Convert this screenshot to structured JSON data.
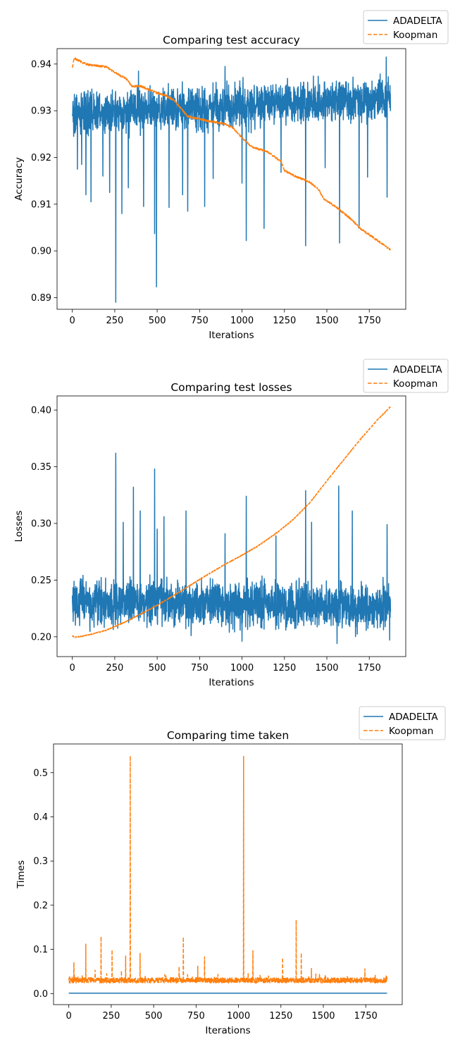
{
  "chart_data": [
    {
      "type": "line",
      "title": "Comparing test accuracy",
      "xlabel": "Iterations",
      "ylabel": "Accuracy",
      "xlim": [
        -90,
        1965
      ],
      "ylim": [
        0.8875,
        0.9433
      ],
      "xticks": [
        0,
        250,
        500,
        750,
        1000,
        1250,
        1500,
        1750
      ],
      "yticks": [
        0.89,
        0.9,
        0.91,
        0.92,
        0.93,
        0.94
      ],
      "ytick_labels": [
        "0.89",
        "0.90",
        "0.91",
        "0.92",
        "0.93",
        "0.94"
      ],
      "legend_position": "outside top-right",
      "series": [
        {
          "name": "ADADELTA",
          "color": "#1f77b4",
          "style": "solid",
          "kind": "noisy",
          "baseline": [
            [
              0,
              0.9295
            ],
            [
              1875,
              0.9325
            ]
          ],
          "noise_amplitude": 0.0055,
          "spikes": [
            [
              8,
              0.9245
            ],
            [
              30,
              0.9175
            ],
            [
              55,
              0.9185
            ],
            [
              80,
              0.912
            ],
            [
              110,
              0.9105
            ],
            [
              180,
              0.916
            ],
            [
              220,
              0.9125
            ],
            [
              256,
              0.889
            ],
            [
              292,
              0.908
            ],
            [
              330,
              0.9135
            ],
            [
              420,
              0.9095
            ],
            [
              485,
              0.9037
            ],
            [
              496,
              0.8923
            ],
            [
              570,
              0.9093
            ],
            [
              650,
              0.912
            ],
            [
              680,
              0.9085
            ],
            [
              780,
              0.9095
            ],
            [
              830,
              0.9155
            ],
            [
              1000,
              0.9145
            ],
            [
              1025,
              0.9022
            ],
            [
              1130,
              0.9048
            ],
            [
              1230,
              0.9168
            ],
            [
              1375,
              0.9011
            ],
            [
              1490,
              0.9178
            ],
            [
              1575,
              0.9017
            ],
            [
              1690,
              0.9049
            ],
            [
              1740,
              0.9158
            ],
            [
              1855,
              0.9115
            ],
            [
              390,
              0.9385
            ],
            [
              900,
              0.9395
            ],
            [
              1850,
              0.9415
            ]
          ],
          "y_min": 0.889,
          "y_max": 0.9418
        },
        {
          "name": "Koopman",
          "color": "#ff7f0e",
          "style": "dashed",
          "kind": "trend",
          "points": [
            [
              0,
              0.9392
            ],
            [
              10,
              0.9412
            ],
            [
              20,
              0.9411
            ],
            [
              60,
              0.9403
            ],
            [
              100,
              0.9398
            ],
            [
              200,
              0.9394
            ],
            [
              250,
              0.9382
            ],
            [
              320,
              0.9368
            ],
            [
              350,
              0.9352
            ],
            [
              400,
              0.9353
            ],
            [
              500,
              0.9338
            ],
            [
              550,
              0.9333
            ],
            [
              600,
              0.9322
            ],
            [
              680,
              0.9288
            ],
            [
              740,
              0.9283
            ],
            [
              800,
              0.9278
            ],
            [
              900,
              0.9272
            ],
            [
              950,
              0.9262
            ],
            [
              1000,
              0.9242
            ],
            [
              1060,
              0.9222
            ],
            [
              1150,
              0.9212
            ],
            [
              1230,
              0.9192
            ],
            [
              1250,
              0.9172
            ],
            [
              1300,
              0.9162
            ],
            [
              1400,
              0.9147
            ],
            [
              1450,
              0.9132
            ],
            [
              1480,
              0.9112
            ],
            [
              1550,
              0.9095
            ],
            [
              1630,
              0.9072
            ],
            [
              1700,
              0.9047
            ],
            [
              1760,
              0.9032
            ],
            [
              1820,
              0.9017
            ],
            [
              1875,
              0.9002
            ]
          ],
          "jitter": 0.0002
        }
      ]
    },
    {
      "type": "line",
      "title": "Comparing test losses",
      "xlabel": "Iterations",
      "ylabel": "Losses",
      "xlim": [
        -90,
        1965
      ],
      "ylim": [
        0.1825,
        0.4125
      ],
      "xticks": [
        0,
        250,
        500,
        750,
        1000,
        1250,
        1500,
        1750
      ],
      "yticks": [
        0.2,
        0.25,
        0.3,
        0.35,
        0.4
      ],
      "ytick_labels": [
        "0.20",
        "0.25",
        "0.30",
        "0.35",
        "0.40"
      ],
      "legend_position": "outside top-right",
      "series": [
        {
          "name": "ADADELTA",
          "color": "#1f77b4",
          "style": "solid",
          "kind": "noisy",
          "baseline": [
            [
              0,
              0.231
            ],
            [
              1875,
              0.226
            ]
          ],
          "noise_amplitude": 0.024,
          "spikes": [
            [
              256,
              0.362
            ],
            [
              300,
              0.301
            ],
            [
              360,
              0.332
            ],
            [
              400,
              0.311
            ],
            [
              485,
              0.348
            ],
            [
              500,
              0.295
            ],
            [
              540,
              0.306
            ],
            [
              670,
              0.311
            ],
            [
              900,
              0.291
            ],
            [
              1025,
              0.324
            ],
            [
              1200,
              0.289
            ],
            [
              1375,
              0.329
            ],
            [
              1410,
              0.301
            ],
            [
              1570,
              0.333
            ],
            [
              1650,
              0.311
            ],
            [
              1855,
              0.299
            ],
            [
              1870,
              0.268
            ],
            [
              700,
              0.201
            ],
            [
              1000,
              0.196
            ],
            [
              1560,
              0.194
            ],
            [
              1870,
              0.197
            ]
          ],
          "y_min": 0.194,
          "y_max": 0.362
        },
        {
          "name": "Koopman",
          "color": "#ff7f0e",
          "style": "dashed",
          "kind": "trend",
          "points": [
            [
              0,
              0.2007
            ],
            [
              15,
              0.1996
            ],
            [
              100,
              0.2017
            ],
            [
              200,
              0.2058
            ],
            [
              300,
              0.2123
            ],
            [
              400,
              0.2197
            ],
            [
              500,
              0.2278
            ],
            [
              600,
              0.2366
            ],
            [
              700,
              0.2459
            ],
            [
              800,
              0.2551
            ],
            [
              900,
              0.2639
            ],
            [
              1000,
              0.272
            ],
            [
              1100,
              0.2807
            ],
            [
              1200,
              0.2912
            ],
            [
              1300,
              0.3032
            ],
            [
              1400,
              0.3184
            ],
            [
              1500,
              0.3375
            ],
            [
              1600,
              0.3563
            ],
            [
              1700,
              0.3747
            ],
            [
              1800,
              0.3916
            ],
            [
              1875,
              0.4029
            ]
          ],
          "jitter": 0.0004
        }
      ]
    },
    {
      "type": "line",
      "title": "Comparing time taken",
      "xlabel": "Iterations",
      "ylabel": "Times",
      "xlim": [
        -90,
        1965
      ],
      "ylim": [
        -0.025,
        0.565
      ],
      "xticks": [
        0,
        250,
        500,
        750,
        1000,
        1250,
        1500,
        1750
      ],
      "yticks": [
        0.0,
        0.1,
        0.2,
        0.3,
        0.4,
        0.5
      ],
      "ytick_labels": [
        "0.0",
        "0.1",
        "0.2",
        "0.3",
        "0.4",
        "0.5"
      ],
      "legend_position": "outside top-right",
      "series": [
        {
          "name": "ADADELTA",
          "color": "#1f77b4",
          "style": "solid",
          "kind": "flat",
          "value": 0.001
        },
        {
          "name": "Koopman",
          "color": "#ff7f0e",
          "style": "dashed",
          "kind": "spiky",
          "baseline": 0.03,
          "noise_amplitude": 0.006,
          "spikes": [
            [
              5,
              0.038
            ],
            [
              20,
              0.037
            ],
            [
              30,
              0.071
            ],
            [
              100,
              0.112
            ],
            [
              155,
              0.053
            ],
            [
              190,
              0.129
            ],
            [
              255,
              0.099
            ],
            [
              310,
              0.052
            ],
            [
              335,
              0.085
            ],
            [
              362,
              0.538
            ],
            [
              420,
              0.091
            ],
            [
              450,
              0.041
            ],
            [
              650,
              0.061
            ],
            [
              675,
              0.128
            ],
            [
              700,
              0.043
            ],
            [
              760,
              0.062
            ],
            [
              800,
              0.083
            ],
            [
              1030,
              0.537
            ],
            [
              1085,
              0.097
            ],
            [
              1260,
              0.081
            ],
            [
              1340,
              0.167
            ],
            [
              1370,
              0.092
            ],
            [
              1430,
              0.057
            ],
            [
              1745,
              0.056
            ],
            [
              1870,
              0.04
            ]
          ]
        }
      ]
    }
  ]
}
